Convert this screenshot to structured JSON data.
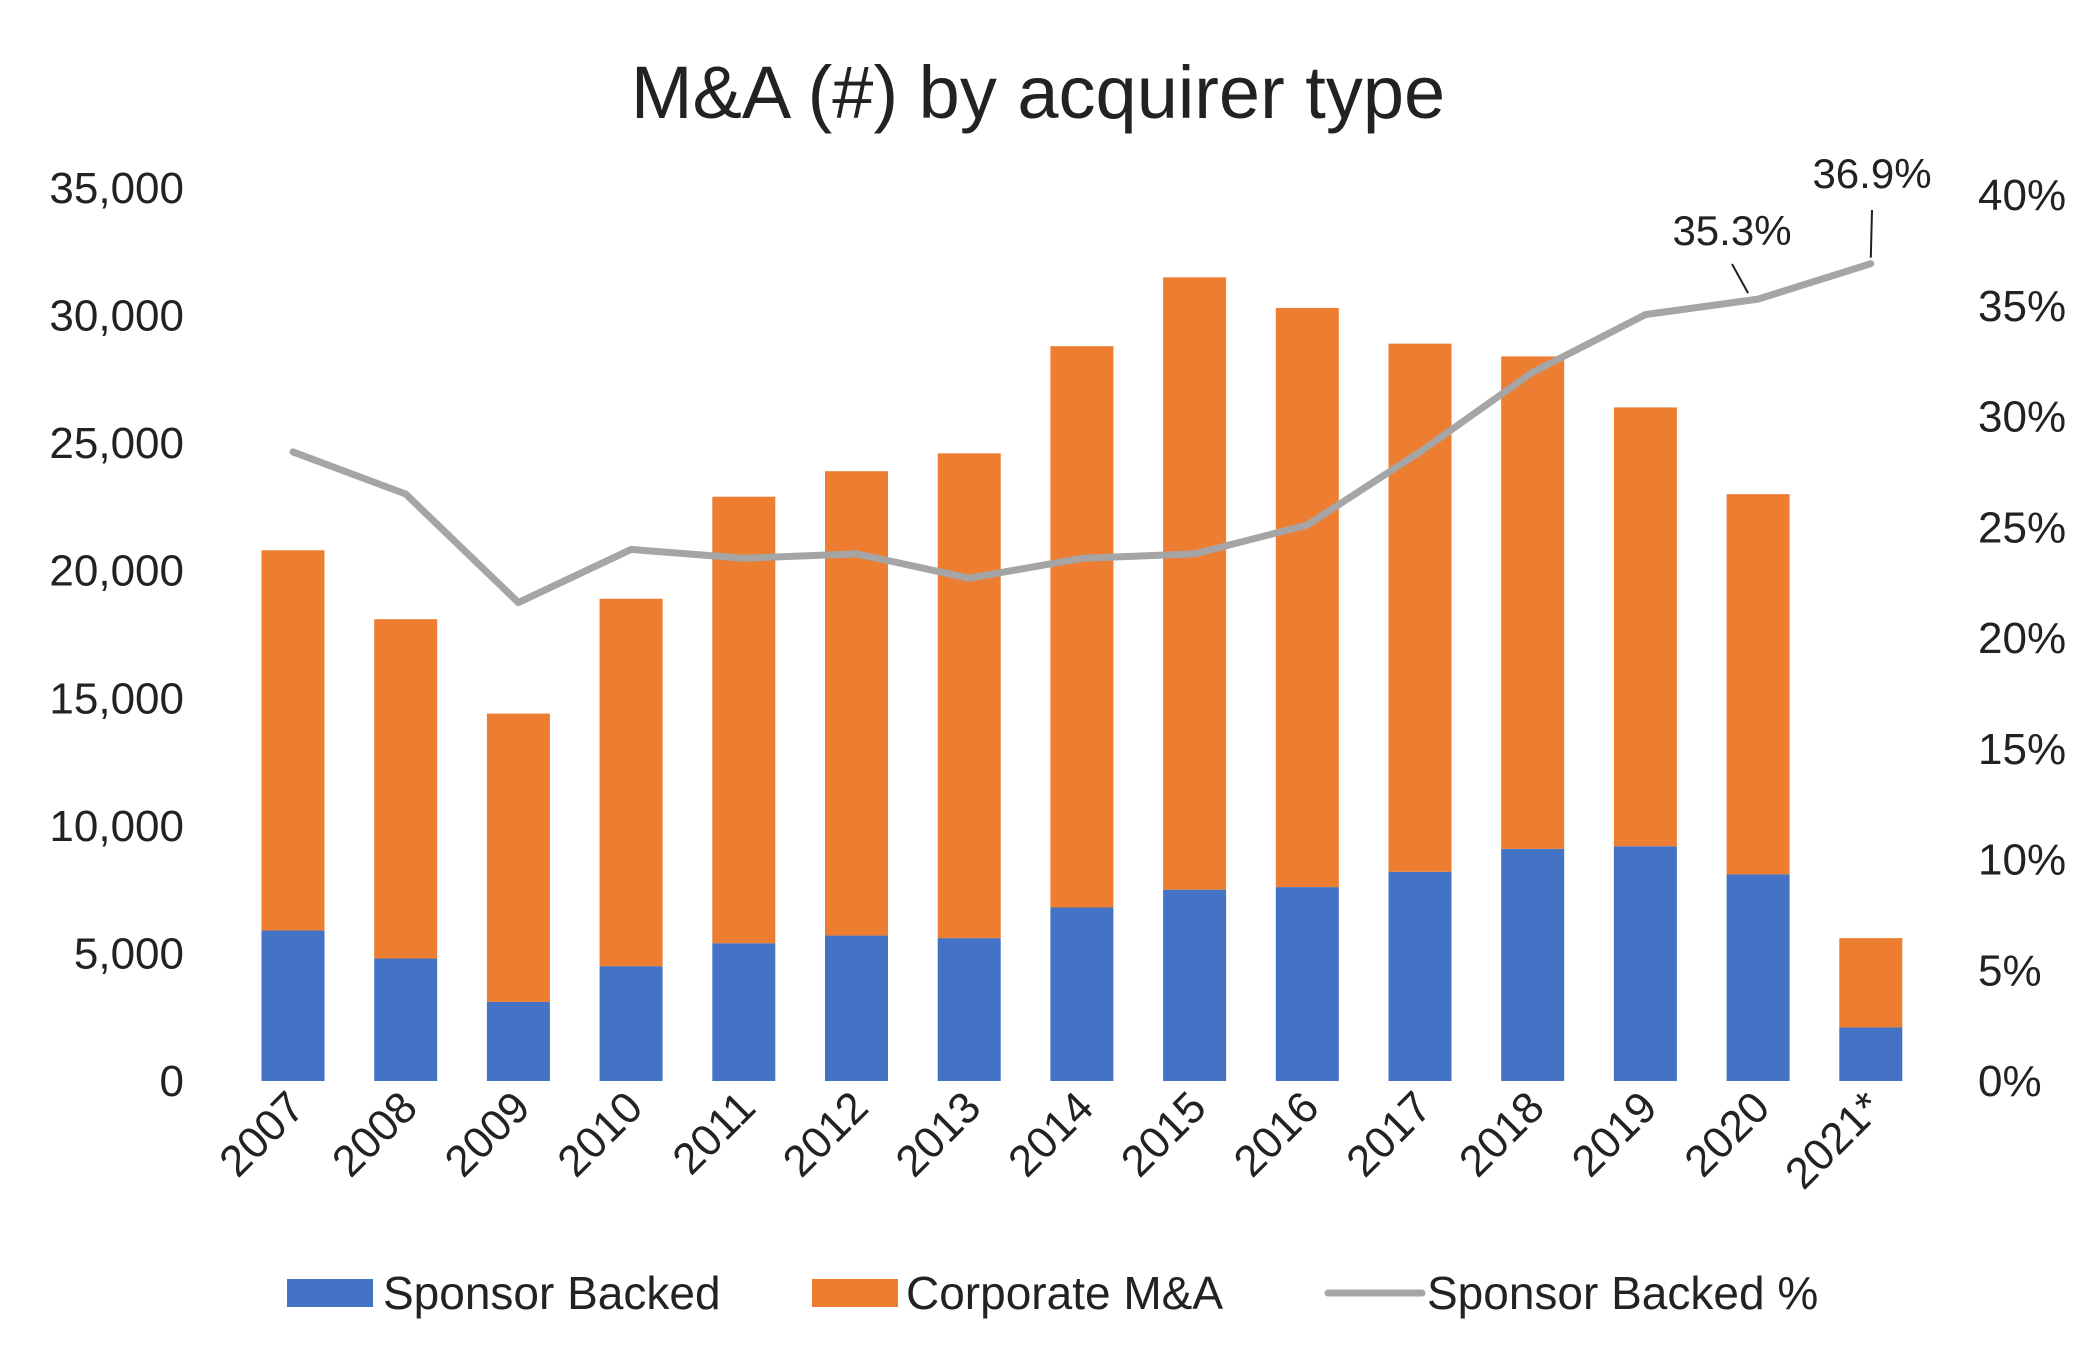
{
  "chart_data": {
    "type": "bar",
    "title": "M&A (#) by acquirer type",
    "categories": [
      "2007",
      "2008",
      "2009",
      "2010",
      "2011",
      "2012",
      "2013",
      "2014",
      "2015",
      "2016",
      "2017",
      "2018",
      "2019",
      "2020",
      "2021*"
    ],
    "series": [
      {
        "name": "Sponsor Backed",
        "kind": "bar",
        "stacked": true,
        "axis": "left",
        "color": "#4472C4",
        "values": [
          5900,
          4800,
          3100,
          4500,
          5400,
          5700,
          5600,
          6800,
          7500,
          7600,
          8200,
          9100,
          9200,
          8100,
          2100
        ]
      },
      {
        "name": "Corporate M&A",
        "kind": "bar",
        "stacked": true,
        "axis": "left",
        "color": "#ED7D31",
        "values": [
          14900,
          13300,
          11300,
          14400,
          17500,
          18200,
          19000,
          22000,
          24000,
          22700,
          20700,
          19300,
          17200,
          14900,
          3500
        ]
      },
      {
        "name": "Sponsor Backed %",
        "kind": "line",
        "axis": "right",
        "color": "#A5A5A5",
        "values": [
          28.4,
          26.5,
          21.6,
          24.0,
          23.6,
          23.8,
          22.7,
          23.6,
          23.8,
          25.1,
          28.4,
          32.0,
          34.6,
          35.3,
          36.9
        ]
      }
    ],
    "y_left": {
      "min": 0,
      "max": 35000,
      "step": 5000,
      "tick_labels": [
        "0",
        "5,000",
        "10,000",
        "15,000",
        "20,000",
        "25,000",
        "30,000",
        "35,000"
      ]
    },
    "y_right": {
      "min": 0,
      "max": 40,
      "step": 5,
      "unit": "%",
      "tick_labels": [
        "0%",
        "5%",
        "10%",
        "15%",
        "20%",
        "25%",
        "30%",
        "35%",
        "40%"
      ]
    },
    "annotations": [
      {
        "category": "2020",
        "text": "35.3%"
      },
      {
        "category": "2021*",
        "text": "36.9%"
      }
    ],
    "legend": {
      "placement": "bottom",
      "entries": [
        "Sponsor Backed",
        "Corporate M&A",
        "Sponsor Backed %"
      ]
    },
    "grid": false,
    "x_tick_rotation": -45
  }
}
